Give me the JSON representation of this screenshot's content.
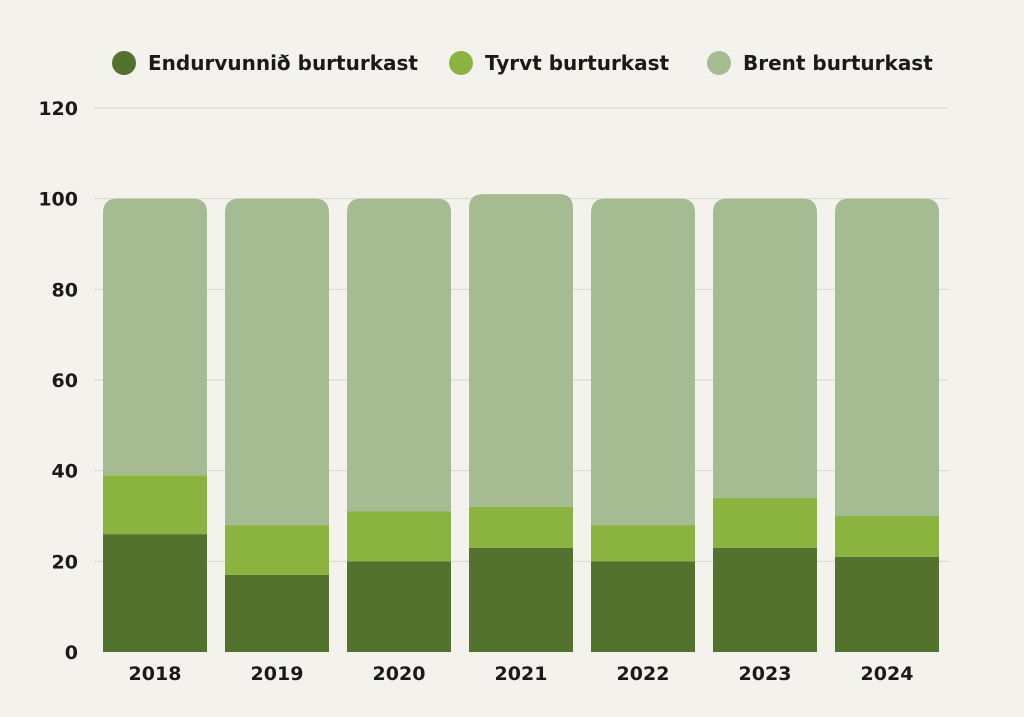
{
  "chart_data": {
    "type": "bar",
    "stacked": true,
    "title": "",
    "xlabel": "",
    "ylabel": "",
    "ylim": [
      0,
      120
    ],
    "yticks": [
      0,
      20,
      40,
      60,
      80,
      100,
      120
    ],
    "grid": true,
    "legend_position": "top",
    "categories": [
      "2018",
      "2019",
      "2020",
      "2021",
      "2022",
      "2023",
      "2024"
    ],
    "series": [
      {
        "name": "Endurvunnið burturkast",
        "color": "#52722e",
        "values": [
          26,
          17,
          20,
          23,
          20,
          23,
          21
        ]
      },
      {
        "name": "Tyrvt burturkast",
        "color": "#8ab33f",
        "values": [
          13,
          11,
          11,
          9,
          8,
          11,
          9
        ]
      },
      {
        "name": "Brent burturkast",
        "color": "#a5bb91",
        "values": [
          61,
          72,
          69,
          69,
          72,
          66,
          70
        ]
      }
    ]
  }
}
